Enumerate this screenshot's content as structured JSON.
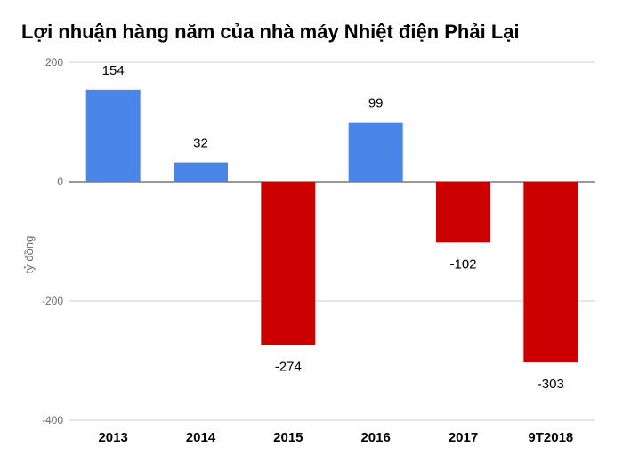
{
  "chart_data": {
    "type": "bar",
    "title": "Lợi nhuận hàng năm của nhà máy Nhiệt điện Phải Lại",
    "ylabel": "tỷ đồng",
    "xlabel": "",
    "categories": [
      "2013",
      "2014",
      "2015",
      "2016",
      "2017",
      "9T2018"
    ],
    "values": [
      154,
      32,
      -274,
      99,
      -102,
      -303
    ],
    "data_labels": [
      "154",
      "32",
      "-274",
      "99",
      "-102",
      "-303"
    ],
    "yticks": [
      200,
      0,
      -200,
      -400
    ],
    "ytick_labels": [
      "200",
      "0",
      "-200",
      "-400"
    ],
    "ylim": [
      -400,
      200
    ],
    "grid": true,
    "legend": "none",
    "colors": {
      "positive": "#4a86e8",
      "negative": "#cc0000"
    }
  }
}
